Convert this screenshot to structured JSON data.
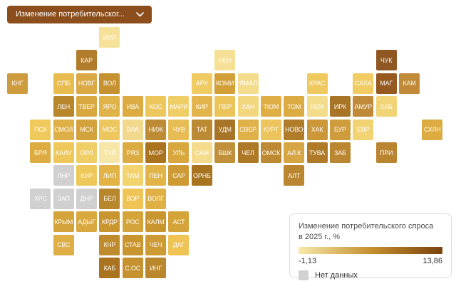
{
  "header": {
    "metric_selector_label": "Изменение потребительског..."
  },
  "colors": {
    "accent_brown": "#8B4E1C",
    "background": "#FFFFFF",
    "no_data_gray": "#D2D2D2",
    "legend_border": "#DCDCDC"
  },
  "legend": {
    "title_line1": "Изменение потребительского спроса",
    "title_line2": "в 2025 г., %",
    "min_label": "-1,13",
    "max_label": "13,86",
    "no_data_label": "Нет данных",
    "gradient_from": "#F7E9A9",
    "gradient_mid": "#C68F2F",
    "gradient_to": "#7A430E"
  },
  "chart_data": {
    "type": "heatmap",
    "subtype": "tile-grid-cartogram",
    "title": "Изменение потребительского спроса в 2025 г., %",
    "unit": "%",
    "value_range": [
      -1.13,
      13.86
    ],
    "legend_position": "bottom-right",
    "grid": {
      "cols": 19,
      "rows": 11
    },
    "no_data_regions": [
      "ЛНР",
      "ХРС",
      "ЗАП",
      "ДНР"
    ],
    "tiles": [
      {
        "label": "МУР",
        "col": 4,
        "row": 0,
        "color": "#F6E198"
      },
      {
        "label": "КАР",
        "col": 3,
        "row": 1,
        "color": "#B27C2D"
      },
      {
        "label": "НЕН",
        "col": 9,
        "row": 1,
        "color": "#F6E095"
      },
      {
        "label": "ЧУК",
        "col": 16,
        "row": 1,
        "color": "#8F5722"
      },
      {
        "label": "КНГ",
        "col": 0,
        "row": 2,
        "color": "#CE9C3E"
      },
      {
        "label": "СПБ",
        "col": 2,
        "row": 2,
        "color": "#E9BC50"
      },
      {
        "label": "НОВГ",
        "col": 3,
        "row": 2,
        "color": "#DAA945"
      },
      {
        "label": "ВОЛ",
        "col": 4,
        "row": 2,
        "color": "#C6922F"
      },
      {
        "label": "АРХ",
        "col": 8,
        "row": 2,
        "color": "#EFCB62"
      },
      {
        "label": "КОМИ",
        "col": 9,
        "row": 2,
        "color": "#D3A037"
      },
      {
        "label": "ЯМАЛ",
        "col": 10,
        "row": 2,
        "color": "#F3DC8C"
      },
      {
        "label": "КРАС",
        "col": 13,
        "row": 2,
        "color": "#EFC95E"
      },
      {
        "label": "САХА",
        "col": 15,
        "row": 2,
        "color": "#F0CC63"
      },
      {
        "label": "МАГ",
        "col": 16,
        "row": 2,
        "color": "#96591F"
      },
      {
        "label": "КАМ",
        "col": 17,
        "row": 2,
        "color": "#C08A38"
      },
      {
        "label": "ЛЕН",
        "col": 2,
        "row": 3,
        "color": "#B8862B"
      },
      {
        "label": "ТВЕР",
        "col": 3,
        "row": 3,
        "color": "#D8A83E"
      },
      {
        "label": "ЯРО",
        "col": 4,
        "row": 3,
        "color": "#E0B348"
      },
      {
        "label": "ИВА",
        "col": 5,
        "row": 3,
        "color": "#DCAC42"
      },
      {
        "label": "КОС",
        "col": 6,
        "row": 3,
        "color": "#EDC75C"
      },
      {
        "label": "МАРИ",
        "col": 7,
        "row": 3,
        "color": "#EFCE68"
      },
      {
        "label": "КИР",
        "col": 8,
        "row": 3,
        "color": "#E3B44B"
      },
      {
        "label": "ПЕР",
        "col": 9,
        "row": 3,
        "color": "#ECC55A"
      },
      {
        "label": "ХАН",
        "col": 10,
        "row": 3,
        "color": "#F2D77F"
      },
      {
        "label": "ТЮМ",
        "col": 11,
        "row": 3,
        "color": "#DFAE44"
      },
      {
        "label": "ТОМ",
        "col": 12,
        "row": 3,
        "color": "#DCAB41"
      },
      {
        "label": "КЕМ",
        "col": 13,
        "row": 3,
        "color": "#F3DC8A"
      },
      {
        "label": "ИРК",
        "col": 14,
        "row": 3,
        "color": "#A87527"
      },
      {
        "label": "АМУР",
        "col": 15,
        "row": 3,
        "color": "#C08A38"
      },
      {
        "label": "ХАБ",
        "col": 16,
        "row": 3,
        "color": "#F2D478"
      },
      {
        "label": "ПСК",
        "col": 1,
        "row": 4,
        "color": "#F0C95C"
      },
      {
        "label": "СМОЛ",
        "col": 2,
        "row": 4,
        "color": "#DFAF47"
      },
      {
        "label": "МСК",
        "col": 3,
        "row": 4,
        "color": "#D3A23C"
      },
      {
        "label": "МОС",
        "col": 4,
        "row": 4,
        "color": "#EDC65E"
      },
      {
        "label": "ВЛА",
        "col": 5,
        "row": 4,
        "color": "#F2D88C"
      },
      {
        "label": "НИЖ",
        "col": 6,
        "row": 4,
        "color": "#BE8B35"
      },
      {
        "label": "ЧУВ",
        "col": 7,
        "row": 4,
        "color": "#E8BC55"
      },
      {
        "label": "ТАТ",
        "col": 8,
        "row": 4,
        "color": "#BC8A33"
      },
      {
        "label": "УДМ",
        "col": 9,
        "row": 4,
        "color": "#A87427"
      },
      {
        "label": "СВЕР",
        "col": 10,
        "row": 4,
        "color": "#E0B148"
      },
      {
        "label": "КУРГ",
        "col": 11,
        "row": 4,
        "color": "#ECC45C"
      },
      {
        "label": "НОВО",
        "col": 12,
        "row": 4,
        "color": "#B07C2A"
      },
      {
        "label": "ХАК",
        "col": 13,
        "row": 4,
        "color": "#CB9739"
      },
      {
        "label": "БУР",
        "col": 14,
        "row": 4,
        "color": "#CE9C3C"
      },
      {
        "label": "ЕВР",
        "col": 15,
        "row": 4,
        "color": "#F2D374"
      },
      {
        "label": "СХЛН",
        "col": 18,
        "row": 4,
        "color": "#DCAC42"
      },
      {
        "label": "БРЯ",
        "col": 1,
        "row": 5,
        "color": "#DCAB41"
      },
      {
        "label": "КАЛУ",
        "col": 2,
        "row": 5,
        "color": "#EFC85C"
      },
      {
        "label": "ОРЛ",
        "col": 3,
        "row": 5,
        "color": "#F0CE67"
      },
      {
        "label": "ТУЛ",
        "col": 4,
        "row": 5,
        "color": "#F6E6A7"
      },
      {
        "label": "РЯЗ",
        "col": 5,
        "row": 5,
        "color": "#DCAB41"
      },
      {
        "label": "МОР",
        "col": 6,
        "row": 5,
        "color": "#A9731F"
      },
      {
        "label": "УЛЬ",
        "col": 7,
        "row": 5,
        "color": "#D8A73D"
      },
      {
        "label": "САМ",
        "col": 8,
        "row": 5,
        "color": "#F4DC8C"
      },
      {
        "label": "БШК",
        "col": 9,
        "row": 5,
        "color": "#C1903A"
      },
      {
        "label": "ЧЕЛ",
        "col": 10,
        "row": 5,
        "color": "#AE7926"
      },
      {
        "label": "ОМСК",
        "col": 11,
        "row": 5,
        "color": "#BD8A33"
      },
      {
        "label": "АЛ.К",
        "col": 12,
        "row": 5,
        "color": "#D7A644"
      },
      {
        "label": "ТУВА",
        "col": 13,
        "row": 5,
        "color": "#AF7B28"
      },
      {
        "label": "ЗАБ",
        "col": 14,
        "row": 5,
        "color": "#BA8630"
      },
      {
        "label": "ПРИ",
        "col": 16,
        "row": 5,
        "color": "#B98530"
      },
      {
        "label": "ЛНР",
        "col": 2,
        "row": 6,
        "color": "#D0D0D0",
        "no_data": true
      },
      {
        "label": "КУР",
        "col": 3,
        "row": 6,
        "color": "#EFC85C"
      },
      {
        "label": "ЛИП",
        "col": 4,
        "row": 6,
        "color": "#E2B448"
      },
      {
        "label": "ТАМ",
        "col": 5,
        "row": 6,
        "color": "#F2D36E"
      },
      {
        "label": "ПЕН",
        "col": 6,
        "row": 6,
        "color": "#E2B448"
      },
      {
        "label": "САР",
        "col": 7,
        "row": 6,
        "color": "#CE9A34"
      },
      {
        "label": "ОРНБ",
        "col": 8,
        "row": 6,
        "color": "#A8741F"
      },
      {
        "label": "АЛТ",
        "col": 12,
        "row": 6,
        "color": "#BA8630"
      },
      {
        "label": "ХРС",
        "col": 1,
        "row": 7,
        "color": "#D0D0D0",
        "no_data": true
      },
      {
        "label": "ЗАП",
        "col": 2,
        "row": 7,
        "color": "#D0D0D0",
        "no_data": true
      },
      {
        "label": "ДНР",
        "col": 3,
        "row": 7,
        "color": "#D0D0D0",
        "no_data": true
      },
      {
        "label": "БЕЛ",
        "col": 4,
        "row": 7,
        "color": "#B8862B"
      },
      {
        "label": "ВОР",
        "col": 5,
        "row": 7,
        "color": "#EFC455"
      },
      {
        "label": "ВОЛГ",
        "col": 6,
        "row": 7,
        "color": "#E0B045"
      },
      {
        "label": "КРЫМ",
        "col": 2,
        "row": 8,
        "color": "#D4A339"
      },
      {
        "label": "АДЫГ",
        "col": 3,
        "row": 8,
        "color": "#D9A83E"
      },
      {
        "label": "КРДР",
        "col": 4,
        "row": 8,
        "color": "#C9952F"
      },
      {
        "label": "РОС",
        "col": 5,
        "row": 8,
        "color": "#D4A339"
      },
      {
        "label": "КАЛМ",
        "col": 6,
        "row": 8,
        "color": "#C9952F"
      },
      {
        "label": "АСТ",
        "col": 7,
        "row": 8,
        "color": "#D4A339"
      },
      {
        "label": "СВС",
        "col": 2,
        "row": 9,
        "color": "#DFAE44"
      },
      {
        "label": "КЧР",
        "col": 4,
        "row": 9,
        "color": "#BE8B2D"
      },
      {
        "label": "СТАВ",
        "col": 5,
        "row": 9,
        "color": "#C9952F"
      },
      {
        "label": "ЧЕЧ",
        "col": 6,
        "row": 9,
        "color": "#CE9A34"
      },
      {
        "label": "ДАГ",
        "col": 7,
        "row": 9,
        "color": "#EFC455"
      },
      {
        "label": "КАБ",
        "col": 4,
        "row": 10,
        "color": "#A9731F"
      },
      {
        "label": "С.ОС",
        "col": 5,
        "row": 10,
        "color": "#C6922F"
      },
      {
        "label": "ИНГ",
        "col": 6,
        "row": 10,
        "color": "#B9872C"
      }
    ]
  }
}
